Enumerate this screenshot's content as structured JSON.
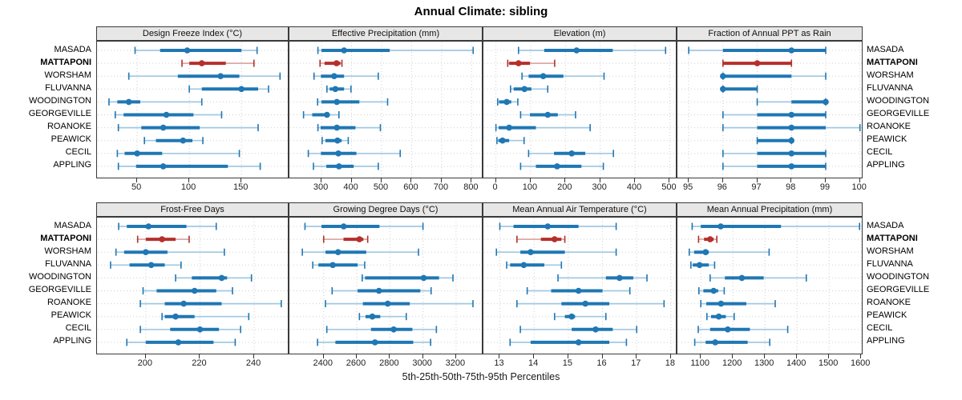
{
  "chart_data": {
    "type": "scatter",
    "subtype": "five-number-percentile-dotplot-trellis",
    "title": "Annual Climate: sibling",
    "caption": "5th-25th-50th-75th-95th Percentiles",
    "grid": "dotted",
    "legend_position": "none",
    "percentiles": [
      5,
      25,
      50,
      75,
      95
    ],
    "sites": [
      "MASADA",
      "MATTAPONI",
      "WORSHAM",
      "FLUVANNA",
      "WOODINGTON",
      "GEORGEVILLE",
      "ROANOKE",
      "PEAWICK",
      "CECIL",
      "APPLING"
    ],
    "highlight_site": "MATTAPONI",
    "colors": {
      "series": "#1f77b4",
      "series_light": "#a0c8e2",
      "highlight": "#b5302b",
      "highlight_light": "#dca9a6",
      "grid": "#cfcfcf",
      "header_bg": "#e7e7e7",
      "border": "#3a3a3a"
    },
    "panels": [
      {
        "title": "Design Freeze Index (°C)",
        "ticks": [
          50,
          100,
          150
        ],
        "xlim": [
          11.5,
          196
        ],
        "values": [
          [
            48,
            72,
            98,
            150,
            165
          ],
          [
            93,
            100,
            112,
            135,
            162
          ],
          [
            42,
            89,
            130,
            148,
            187
          ],
          [
            100,
            112,
            150,
            166,
            176
          ],
          [
            23,
            31,
            42,
            53,
            112
          ],
          [
            29,
            37,
            78,
            104,
            131
          ],
          [
            32,
            54,
            75,
            110,
            166
          ],
          [
            57,
            68,
            94,
            103,
            113
          ],
          [
            31,
            38,
            50,
            74,
            148
          ],
          [
            32,
            49,
            75,
            137,
            168
          ]
        ]
      },
      {
        "title": "Effective Precipitation (mm)",
        "ticks": [
          300,
          400,
          500,
          600,
          700,
          800
        ],
        "xlim": [
          193,
          839
        ],
        "values": [
          [
            288,
            300,
            375,
            527,
            805
          ],
          [
            295,
            310,
            350,
            363,
            368
          ],
          [
            275,
            298,
            342,
            375,
            489
          ],
          [
            318,
            327,
            346,
            375,
            398
          ],
          [
            287,
            300,
            351,
            426,
            520
          ],
          [
            240,
            269,
            318,
            327,
            358
          ],
          [
            288,
            297,
            351,
            413,
            496
          ],
          [
            302,
            313,
            353,
            367,
            389
          ],
          [
            256,
            298,
            356,
            416,
            562
          ],
          [
            273,
            316,
            358,
            407,
            489
          ]
        ]
      },
      {
        "title": "Elevation (m)",
        "ticks": [
          0,
          100,
          200,
          300,
          400,
          500
        ],
        "xlim": [
          -36,
          522
        ],
        "values": [
          [
            65,
            139,
            232,
            336,
            488
          ],
          [
            34,
            38,
            65,
            98,
            169
          ],
          [
            75,
            94,
            136,
            194,
            311
          ],
          [
            42,
            51,
            82,
            102,
            149
          ],
          [
            5,
            9,
            31,
            44,
            63
          ],
          [
            71,
            98,
            149,
            178,
            229
          ],
          [
            0,
            8,
            38,
            115,
            271
          ],
          [
            3,
            7,
            19,
            38,
            81
          ],
          [
            94,
            167,
            218,
            257,
            338
          ],
          [
            71,
            115,
            176,
            246,
            309
          ]
        ]
      },
      {
        "title": "Fraction of Annual PPT as Rain",
        "ticks": [
          95,
          96,
          97,
          98,
          99,
          100
        ],
        "xlim": [
          94.67,
          100.1
        ],
        "values": [
          [
            95,
            96,
            98,
            99,
            99
          ],
          [
            96,
            96,
            97,
            98,
            98
          ],
          [
            96,
            96,
            96,
            98,
            99
          ],
          [
            96,
            96,
            96,
            97,
            97
          ],
          [
            97,
            98,
            99,
            99,
            99
          ],
          [
            96,
            97,
            98,
            99,
            99
          ],
          [
            96,
            97,
            98,
            99,
            100
          ],
          [
            97,
            97,
            98,
            98,
            98
          ],
          [
            96,
            97,
            98,
            99,
            99
          ],
          [
            96,
            97,
            98,
            99,
            99
          ]
        ]
      },
      {
        "title": "Frost-Free Days",
        "ticks": [
          200,
          220,
          240
        ],
        "xlim": [
          182,
          253
        ],
        "values": [
          [
            190,
            193,
            201,
            215,
            226
          ],
          [
            197,
            200,
            206,
            211,
            216
          ],
          [
            189,
            192,
            200,
            208,
            229
          ],
          [
            187,
            194,
            202,
            207,
            213
          ],
          [
            211,
            217,
            228,
            230,
            239
          ],
          [
            199,
            204,
            218,
            226,
            232
          ],
          [
            198,
            207,
            214,
            228,
            250
          ],
          [
            206,
            207,
            211,
            218,
            238
          ],
          [
            198,
            209,
            220,
            227,
            235
          ],
          [
            193,
            200,
            212,
            225,
            233
          ]
        ]
      },
      {
        "title": "Growing Degree Days (°C)",
        "ticks": [
          2400,
          2600,
          2800,
          3000,
          3200
        ],
        "xlim": [
          2193,
          3365
        ],
        "values": [
          [
            2287,
            2387,
            2521,
            2737,
            3000
          ],
          [
            2400,
            2520,
            2616,
            2640,
            2666
          ],
          [
            2271,
            2411,
            2487,
            2657,
            2973
          ],
          [
            2334,
            2368,
            2455,
            2605,
            2648
          ],
          [
            2633,
            2650,
            3004,
            3097,
            3181
          ],
          [
            2451,
            2605,
            2734,
            2984,
            3049
          ],
          [
            2411,
            2637,
            2787,
            2920,
            3302
          ],
          [
            2616,
            2653,
            2694,
            2742,
            2899
          ],
          [
            2419,
            2686,
            2823,
            2936,
            3081
          ],
          [
            2363,
            2471,
            2710,
            2941,
            3046
          ]
        ]
      },
      {
        "title": "Mean Annual Air Temperature (°C)",
        "ticks": [
          13,
          14,
          15,
          16,
          17,
          18
        ],
        "xlim": [
          12.52,
          18.19
        ],
        "values": [
          [
            13.0,
            13.4,
            14.4,
            15.3,
            16.4
          ],
          [
            13.5,
            14.2,
            14.6,
            14.8,
            14.9
          ],
          [
            12.9,
            13.6,
            13.9,
            14.9,
            16.4
          ],
          [
            13.2,
            13.3,
            13.7,
            14.3,
            14.8
          ],
          [
            14.7,
            16.1,
            16.5,
            16.9,
            17.3
          ],
          [
            13.8,
            14.5,
            15.3,
            16.0,
            16.8
          ],
          [
            13.5,
            14.8,
            15.5,
            16.2,
            17.8
          ],
          [
            14.6,
            14.9,
            15.1,
            15.2,
            16.1
          ],
          [
            13.6,
            15.1,
            15.8,
            16.3,
            17.0
          ],
          [
            13.3,
            13.9,
            15.3,
            16.2,
            16.7
          ]
        ]
      },
      {
        "title": "Mean Annual Precipitation (mm)",
        "ticks": [
          1100,
          1200,
          1300,
          1400,
          1500,
          1600
        ],
        "xlim": [
          1027,
          1607
        ],
        "values": [
          [
            1073,
            1100,
            1162,
            1350,
            1595
          ],
          [
            1093,
            1110,
            1129,
            1140,
            1150
          ],
          [
            1064,
            1079,
            1115,
            1125,
            1313
          ],
          [
            1069,
            1075,
            1096,
            1125,
            1143
          ],
          [
            1129,
            1175,
            1228,
            1296,
            1429
          ],
          [
            1094,
            1108,
            1140,
            1154,
            1173
          ],
          [
            1100,
            1117,
            1163,
            1242,
            1332
          ],
          [
            1119,
            1132,
            1156,
            1178,
            1204
          ],
          [
            1092,
            1129,
            1184,
            1253,
            1371
          ],
          [
            1081,
            1115,
            1145,
            1246,
            1315
          ]
        ]
      }
    ]
  }
}
